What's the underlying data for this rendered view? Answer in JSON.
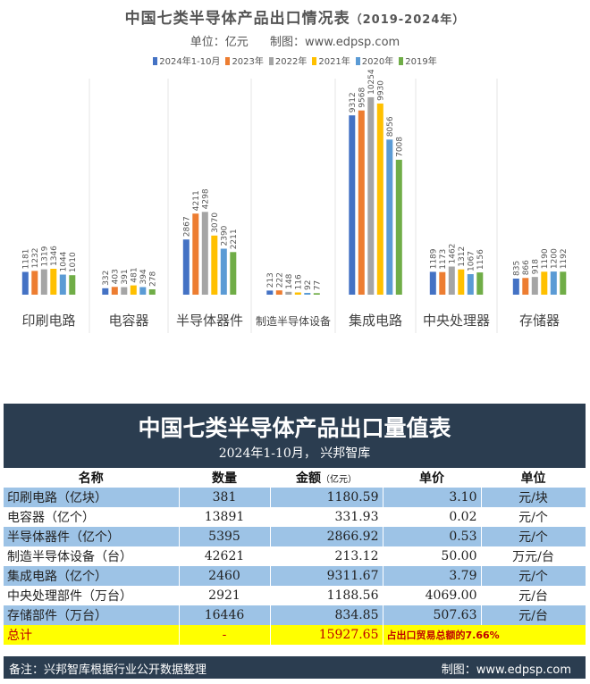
{
  "chart": {
    "title": "中国七类半导体产品出口情况表",
    "title_years": "（2019-2024年）",
    "unit_text": "单位：亿元",
    "credit_text": "制图：www.edpsp.com"
  },
  "chart_data": {
    "type": "bar",
    "title": "中国七类半导体产品出口情况表（2019-2024年）",
    "categories": [
      "印刷电路",
      "电容器",
      "半导体器件",
      "制造半导体设备",
      "集成电路",
      "中央处理器",
      "存储器"
    ],
    "series": [
      {
        "name": "2024年1-10月",
        "color": "#4472c4",
        "values": [
          1181,
          332,
          2867,
          213,
          9312,
          1189,
          835
        ]
      },
      {
        "name": "2023年",
        "color": "#ed7d31",
        "values": [
          1232,
          403,
          4211,
          222,
          9568,
          1173,
          866
        ]
      },
      {
        "name": "2022年",
        "color": "#a5a5a5",
        "values": [
          1319,
          391,
          4298,
          148,
          10254,
          1462,
          918
        ]
      },
      {
        "name": "2021年",
        "color": "#ffc000",
        "values": [
          1346,
          481,
          3070,
          116,
          9930,
          1312,
          1190
        ]
      },
      {
        "name": "2020年",
        "color": "#5b9bd5",
        "values": [
          1044,
          394,
          2390,
          92,
          8056,
          1067,
          1200
        ]
      },
      {
        "name": "2019年",
        "color": "#70ad47",
        "values": [
          1010,
          278,
          2211,
          77,
          7008,
          1156,
          1192
        ]
      }
    ],
    "ylim": [
      0,
      11500
    ],
    "grid": false,
    "legend": "top"
  },
  "table": {
    "title": "中国七类半导体产品出口量值表",
    "subtitle": "2024年1-10月，  兴邦智库",
    "headers": {
      "name": "名称",
      "qty": "数量",
      "amount": "金额",
      "amount_unit": "（亿元）",
      "price": "单价",
      "unit": "单位"
    },
    "rows": [
      {
        "name": "印刷电路（亿块）",
        "qty": "381",
        "amount": "1180.59",
        "price": "3.10",
        "unit": "元/块"
      },
      {
        "name": "电容器（亿个）",
        "qty": "13891",
        "amount": "331.93",
        "price": "0.02",
        "unit": "元/个"
      },
      {
        "name": "半导体器件（亿个）",
        "qty": "5395",
        "amount": "2866.92",
        "price": "0.53",
        "unit": "元/个"
      },
      {
        "name": "制造半导体设备（台）",
        "qty": "42621",
        "amount": "213.12",
        "price": "50.00",
        "unit": "万元/台"
      },
      {
        "name": "集成电路（亿个）",
        "qty": "2460",
        "amount": "9311.67",
        "price": "3.79",
        "unit": "元/个"
      },
      {
        "name": "中央处理部件（万台）",
        "qty": "2921",
        "amount": "1188.56",
        "price": "4069.00",
        "unit": "元/台"
      },
      {
        "name": "存储部件（万台）",
        "qty": "16446",
        "amount": "834.85",
        "price": "507.63",
        "unit": "元/台"
      }
    ],
    "total": {
      "name": "总计",
      "qty": "-",
      "amount": "15927.65",
      "note": "占出口贸易总额的7.66%"
    },
    "footer": {
      "note": "备注：兴邦智库根据行业公开数据整理",
      "credit": "制图：www.edpsp.com"
    }
  }
}
